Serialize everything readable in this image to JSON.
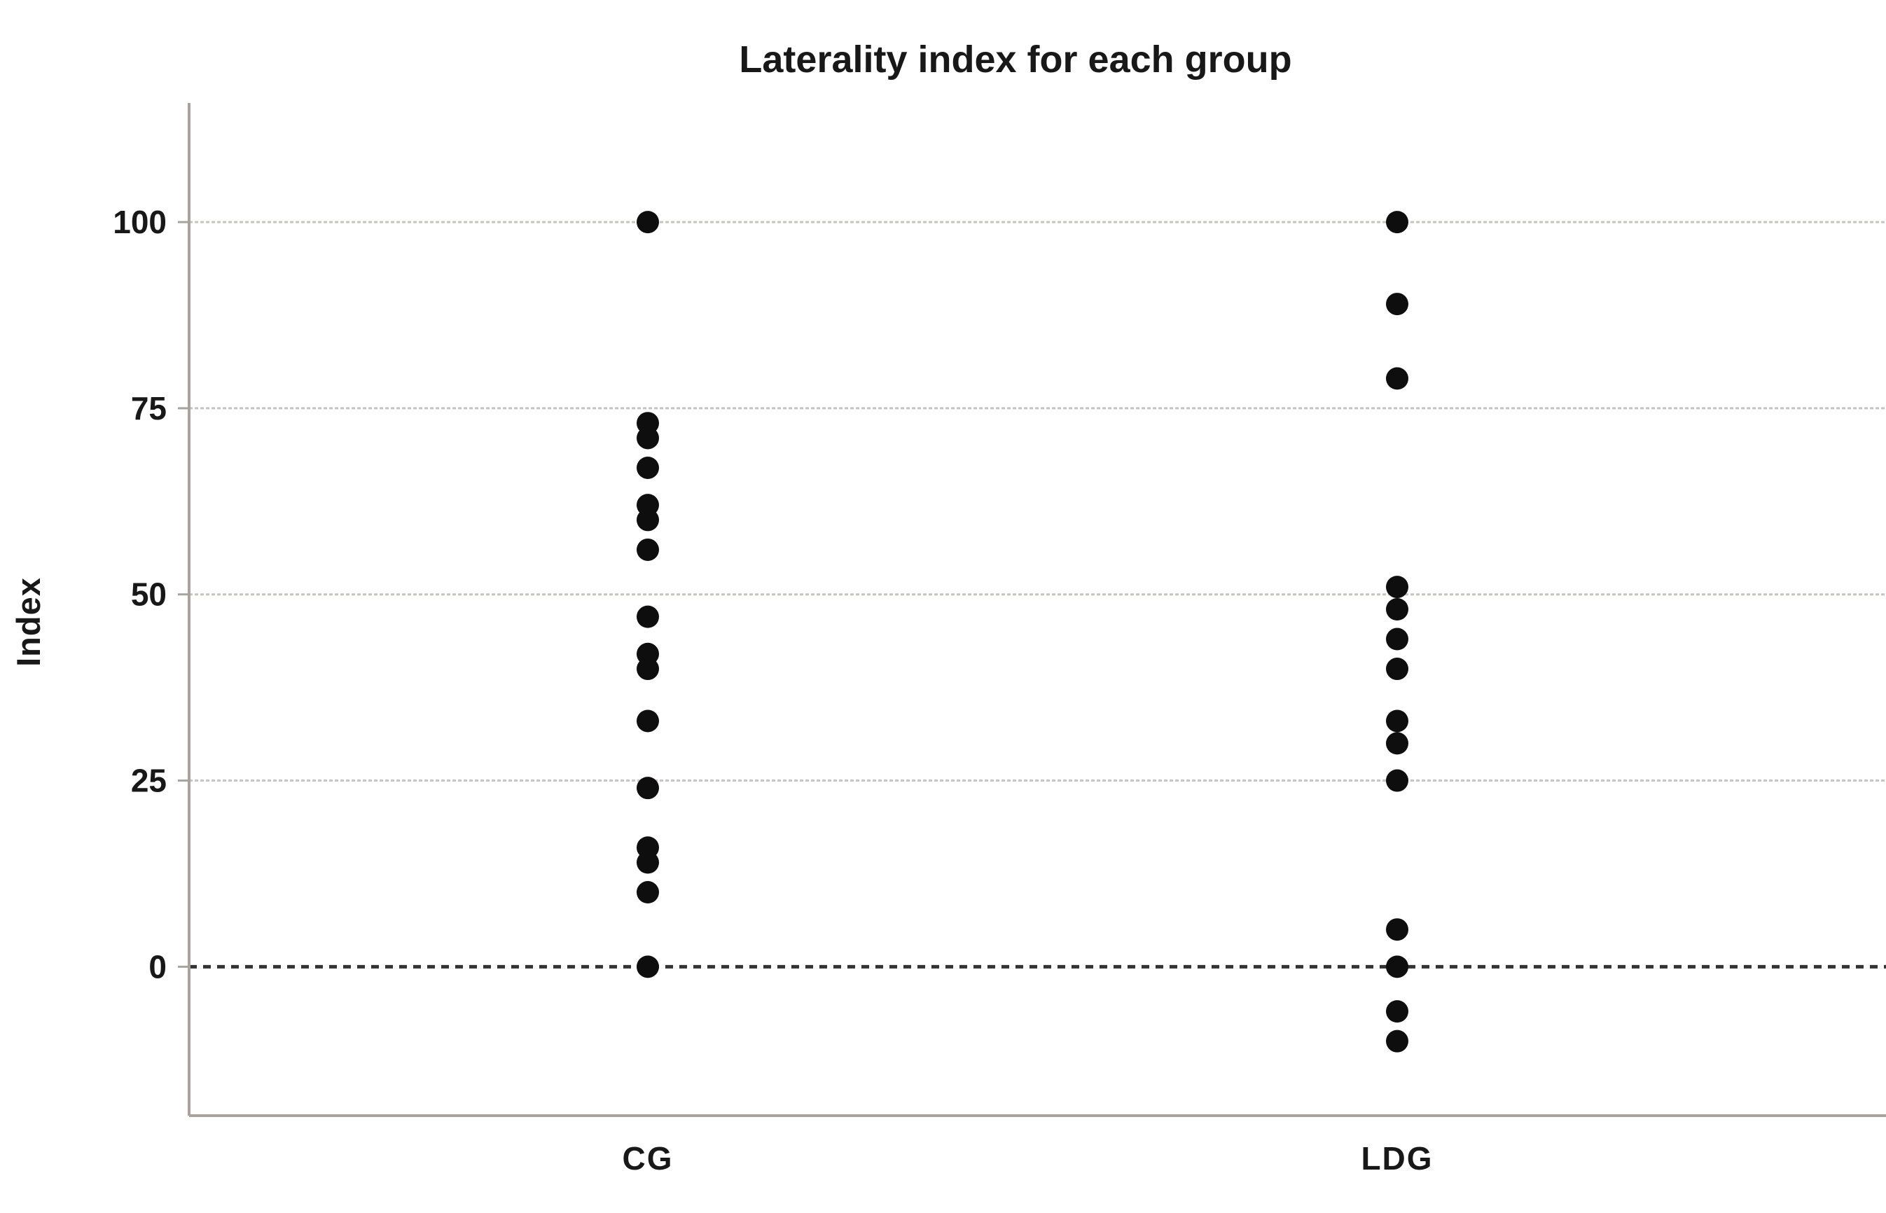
{
  "chart_data": {
    "type": "scatter",
    "title": "Laterality index for each group",
    "xlabel": "",
    "ylabel": "Index",
    "categories": [
      "CG",
      "LDG"
    ],
    "series": [
      {
        "name": "CG",
        "values": [
          100,
          73,
          71,
          67,
          62,
          60,
          56,
          47,
          42,
          40,
          33,
          24,
          16,
          14,
          10,
          0
        ]
      },
      {
        "name": "LDG",
        "values": [
          100,
          89,
          79,
          51,
          48,
          44,
          40,
          33,
          30,
          25,
          5,
          0,
          -6,
          -10
        ]
      }
    ],
    "y_ticks": [
      0,
      25,
      50,
      75,
      100
    ],
    "y_tick_labels": [
      "0",
      "25",
      "50",
      "75",
      "100"
    ],
    "ylim": [
      -20,
      116
    ],
    "grid": true,
    "legend": "none",
    "zero_line_style": "dashed",
    "marker_shape": "circle",
    "marker_color": "#0e0e0e"
  },
  "colors": {
    "background": "#ffffff",
    "text": "#181818",
    "axis": "#a8a39d",
    "gridline": "#c9c4bf",
    "zero_line": "#333333",
    "marker": "#0e0e0e"
  }
}
